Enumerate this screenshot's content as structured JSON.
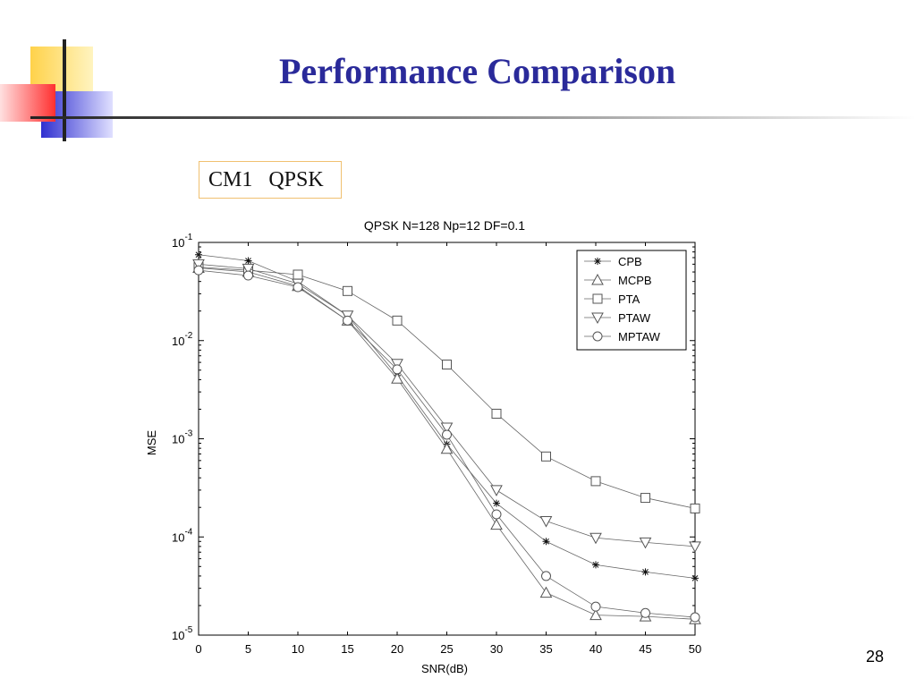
{
  "slide": {
    "title": "Performance Comparison",
    "subtitle": "CM1   QPSK",
    "page_number": "28",
    "colors": {
      "title": "#2a2a9a",
      "deco_yellow": "#ffd24a",
      "deco_red": "#ff4040",
      "deco_blue": "#3a3ad8"
    }
  },
  "chart_data": {
    "type": "line",
    "title": "QPSK  N=128  Np=12  DF=0.1",
    "xlabel": "SNR(dB)",
    "ylabel": "MSE",
    "xlim": [
      0,
      50
    ],
    "ylim": [
      1e-05,
      0.1
    ],
    "yscale": "log",
    "x_ticks": [
      "0",
      "5",
      "10",
      "15",
      "20",
      "25",
      "30",
      "35",
      "40",
      "45",
      "50"
    ],
    "y_ticks": [
      {
        "base": "10",
        "exp": "-1"
      },
      {
        "base": "10",
        "exp": "-2"
      },
      {
        "base": "10",
        "exp": "-3"
      },
      {
        "base": "10",
        "exp": "-4"
      },
      {
        "base": "10",
        "exp": "-5"
      }
    ],
    "legend_position": "top-right",
    "grid": false,
    "x": [
      0,
      5,
      10,
      15,
      20,
      25,
      30,
      35,
      40,
      45,
      50
    ],
    "series": [
      {
        "name": "CPB",
        "marker": "star",
        "values": [
          0.075,
          0.065,
          0.04,
          0.018,
          0.0044,
          0.00088,
          0.00022,
          9e-05,
          5.2e-05,
          4.4e-05,
          3.8e-05
        ]
      },
      {
        "name": "MCPB",
        "marker": "triangle-up",
        "values": [
          0.055,
          0.05,
          0.036,
          0.016,
          0.0041,
          0.00079,
          0.000133,
          2.7e-05,
          1.6e-05,
          1.55e-05,
          1.45e-05
        ]
      },
      {
        "name": "PTA",
        "marker": "square",
        "values": [
          0.056,
          0.052,
          0.047,
          0.032,
          0.016,
          0.0057,
          0.0018,
          0.00066,
          0.00037,
          0.00025,
          0.000195
        ]
      },
      {
        "name": "PTAW",
        "marker": "triangle-down",
        "values": [
          0.06,
          0.054,
          0.038,
          0.018,
          0.0058,
          0.0013,
          0.0003,
          0.000145,
          9.8e-05,
          8.8e-05,
          8e-05
        ]
      },
      {
        "name": "MPTAW",
        "marker": "circle",
        "values": [
          0.052,
          0.046,
          0.035,
          0.016,
          0.0051,
          0.0011,
          0.00017,
          4e-05,
          1.95e-05,
          1.68e-05,
          1.52e-05
        ]
      }
    ]
  }
}
